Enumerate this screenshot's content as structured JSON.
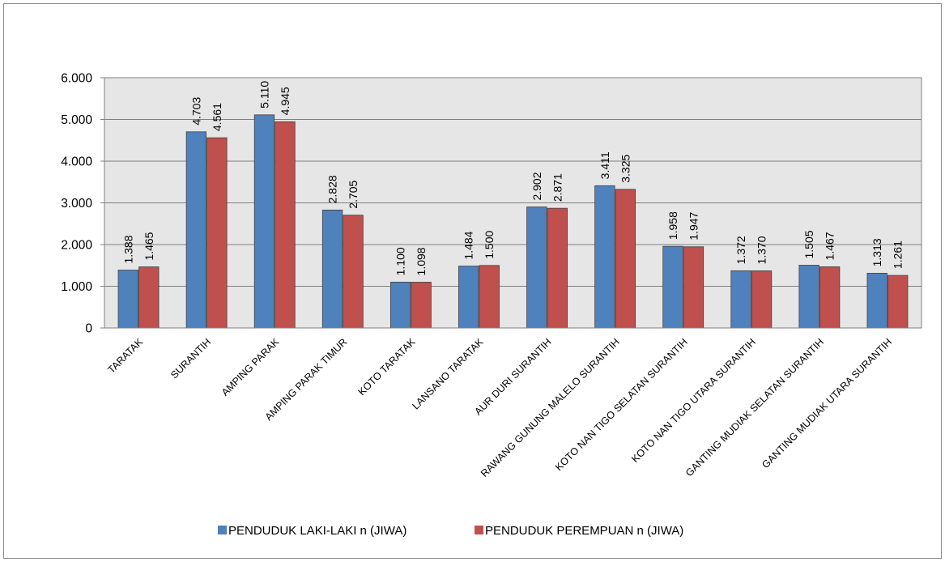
{
  "chart_data": {
    "type": "bar",
    "categories": [
      "TARATAK",
      "SURANTIH",
      "AMPING PARAK",
      "AMPING PARAK TIMUR",
      "KOTO TARATAK",
      "LANSANO TARATAK",
      "AUR DURI SURANTIH",
      "RAWANG GUNUNG MALELO SURANTIH",
      "KOTO NAN TIGO SELATAN SURANTIH",
      "KOTO NAN TIGO UTARA SURANTIH",
      "GANTING MUDIAK SELATAN SURANTIH",
      "GANTING MUDIAK UTARA SURANTIH"
    ],
    "series": [
      {
        "name": "PENDUDUK LAKI-LAKI n (JIWA)",
        "color": "#4f81bd",
        "values": [
          1388,
          4703,
          5110,
          2828,
          1100,
          1484,
          2902,
          3411,
          1958,
          1372,
          1505,
          1313
        ],
        "labels": [
          "1.388",
          "4.703",
          "5.110",
          "2.828",
          "1.100",
          "1.484",
          "2.902",
          "3.411",
          "1.958",
          "1.372",
          "1.505",
          "1.313"
        ]
      },
      {
        "name": "PENDUDUK PEREMPUAN n (JIWA)",
        "color": "#c0504d",
        "values": [
          1465,
          4561,
          4945,
          2705,
          1098,
          1500,
          2871,
          3325,
          1947,
          1370,
          1467,
          1261
        ],
        "labels": [
          "1.465",
          "4.561",
          "4.945",
          "2.705",
          "1.098",
          "1.500",
          "2.871",
          "3.325",
          "1.947",
          "1.370",
          "1.467",
          "1.261"
        ]
      }
    ],
    "ylim": [
      0,
      6000
    ],
    "yticks": [
      0,
      1000,
      2000,
      3000,
      4000,
      5000,
      6000
    ],
    "ytick_labels": [
      "0",
      "1.000",
      "2.000",
      "3.000",
      "4.000",
      "5.000",
      "6.000"
    ],
    "grid": true,
    "plot_background": "#e6e6e6",
    "legend_position": "bottom",
    "title": "",
    "xlabel": "",
    "ylabel": ""
  }
}
